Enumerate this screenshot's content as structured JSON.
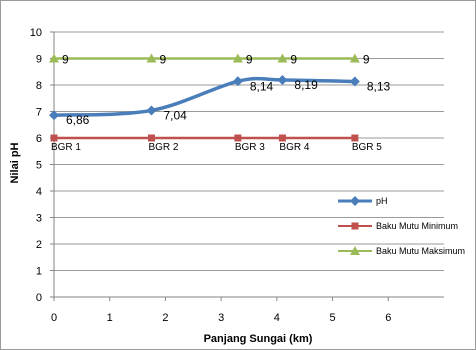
{
  "chart_data": {
    "type": "scatter",
    "title": "",
    "xlabel": "Panjang Sungai (km)",
    "ylabel": "Nilai pH",
    "xlim": [
      0,
      7
    ],
    "ylim": [
      0,
      10
    ],
    "x_ticks": [
      0,
      1,
      2,
      3,
      4,
      5,
      6
    ],
    "y_ticks": [
      0,
      1,
      2,
      3,
      4,
      5,
      6,
      7,
      8,
      9,
      10
    ],
    "grid": true,
    "legend_position": "right",
    "series": [
      {
        "name": "pH",
        "color": "#4a7ebb",
        "marker": "diamond",
        "x": [
          0,
          1.75,
          3.3,
          4.1,
          5.4
        ],
        "y": [
          6.86,
          7.04,
          8.14,
          8.19,
          8.13
        ],
        "labels": [
          "6,86",
          "7,04",
          "8,14",
          "8,19",
          "8,13"
        ]
      },
      {
        "name": "Baku Mutu Minimum",
        "color": "#c0504d",
        "marker": "square",
        "x": [
          0,
          1.75,
          3.3,
          4.1,
          5.4
        ],
        "y": [
          6,
          6,
          6,
          6,
          6
        ]
      },
      {
        "name": "Baku Mutu Maksimum",
        "color": "#9bbb59",
        "marker": "triangle",
        "x": [
          0,
          1.75,
          3.3,
          4.1,
          5.4
        ],
        "y": [
          9,
          9,
          9,
          9,
          9
        ],
        "labels": [
          "9",
          "9",
          "9",
          "9",
          "9"
        ]
      }
    ],
    "station_labels": [
      "BGR 1",
      "BGR 2",
      "BGR 3",
      "BGR 4",
      "BGR 5"
    ],
    "station_label_y": 5.7
  }
}
